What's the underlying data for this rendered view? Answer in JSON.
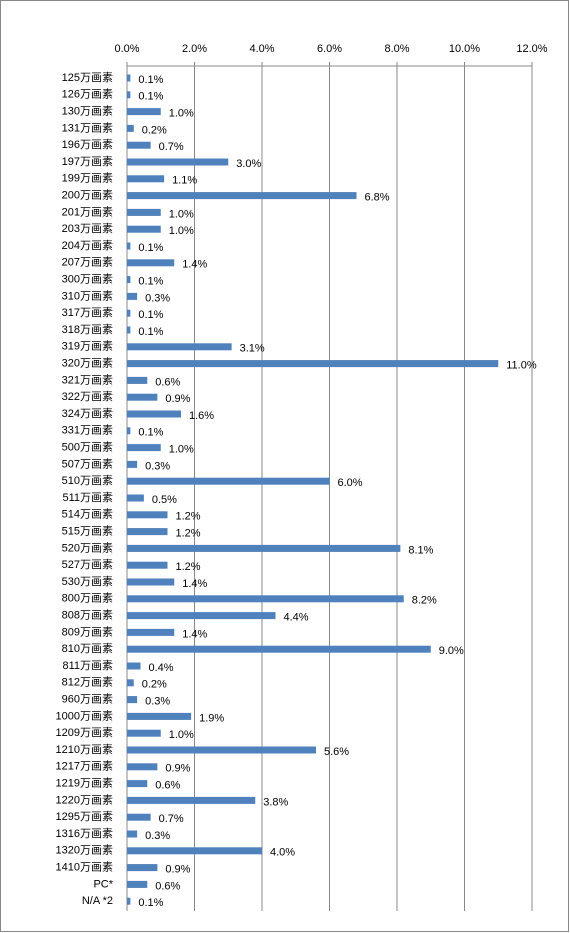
{
  "chart_data": {
    "type": "hbar",
    "categories": [
      "125万画素",
      "126万画素",
      "130万画素",
      "131万画素",
      "196万画素",
      "197万画素",
      "199万画素",
      "200万画素",
      "201万画素",
      "203万画素",
      "204万画素",
      "207万画素",
      "300万画素",
      "310万画素",
      "317万画素",
      "318万画素",
      "319万画素",
      "320万画素",
      "321万画素",
      "322万画素",
      "324万画素",
      "331万画素",
      "500万画素",
      "507万画素",
      "510万画素",
      "511万画素",
      "514万画素",
      "515万画素",
      "520万画素",
      "527万画素",
      "530万画素",
      "800万画素",
      "808万画素",
      "809万画素",
      "810万画素",
      "811万画素",
      "812万画素",
      "960万画素",
      "1000万画素",
      "1209万画素",
      "1210万画素",
      "1217万画素",
      "1219万画素",
      "1220万画素",
      "1295万画素",
      "1316万画素",
      "1320万画素",
      "1410万画素",
      "PC*",
      "N/A *2"
    ],
    "values": [
      0.1,
      0.1,
      1.0,
      0.2,
      0.7,
      3.0,
      1.1,
      6.8,
      1.0,
      1.0,
      0.1,
      1.4,
      0.1,
      0.3,
      0.1,
      0.1,
      3.1,
      11.0,
      0.6,
      0.9,
      1.6,
      0.1,
      1.0,
      0.3,
      6.0,
      0.5,
      1.2,
      1.2,
      8.1,
      1.2,
      1.4,
      8.2,
      4.4,
      1.4,
      9.0,
      0.4,
      0.2,
      0.3,
      1.9,
      1.0,
      5.6,
      0.9,
      0.6,
      3.8,
      0.7,
      0.3,
      4.0,
      0.9,
      0.6,
      0.1
    ],
    "value_labels": [
      "0.1%",
      "0.1%",
      "1.0%",
      "0.2%",
      "0.7%",
      "3.0%",
      "1.1%",
      "6.8%",
      "1.0%",
      "1.0%",
      "0.1%",
      "1.4%",
      "0.1%",
      "0.3%",
      "0.1%",
      "0.1%",
      "3.1%",
      "11.0%",
      "0.6%",
      "0.9%",
      "1.6%",
      "0.1%",
      "1.0%",
      "0.3%",
      "6.0%",
      "0.5%",
      "1.2%",
      "1.2%",
      "8.1%",
      "1.2%",
      "1.4%",
      "8.2%",
      "4.4%",
      "1.4%",
      "9.0%",
      "0.4%",
      "0.2%",
      "0.3%",
      "1.9%",
      "1.0%",
      "5.6%",
      "0.9%",
      "0.6%",
      "3.8%",
      "0.7%",
      "0.3%",
      "4.0%",
      "0.9%",
      "0.6%",
      "0.1%"
    ],
    "color": "#4f81bd",
    "xlim": [
      0,
      12
    ],
    "xticks": [
      {
        "value": 0,
        "label": "0.0%"
      },
      {
        "value": 2,
        "label": "2.0%"
      },
      {
        "value": 4,
        "label": "4.0%"
      },
      {
        "value": 6,
        "label": "6.0%"
      },
      {
        "value": 8,
        "label": "8.0%"
      },
      {
        "value": 10,
        "label": "10.0%"
      },
      {
        "value": 12,
        "label": "12.0%"
      }
    ],
    "grid": true
  }
}
